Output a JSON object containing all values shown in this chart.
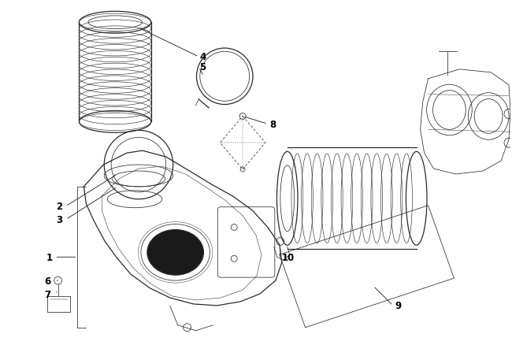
{
  "bg_color": "#ffffff",
  "line_color": "#2a2a2a",
  "label_color": "#000000",
  "fig_width": 6.5,
  "fig_height": 4.39,
  "dpi": 100,
  "font_size_ids": 8.5
}
